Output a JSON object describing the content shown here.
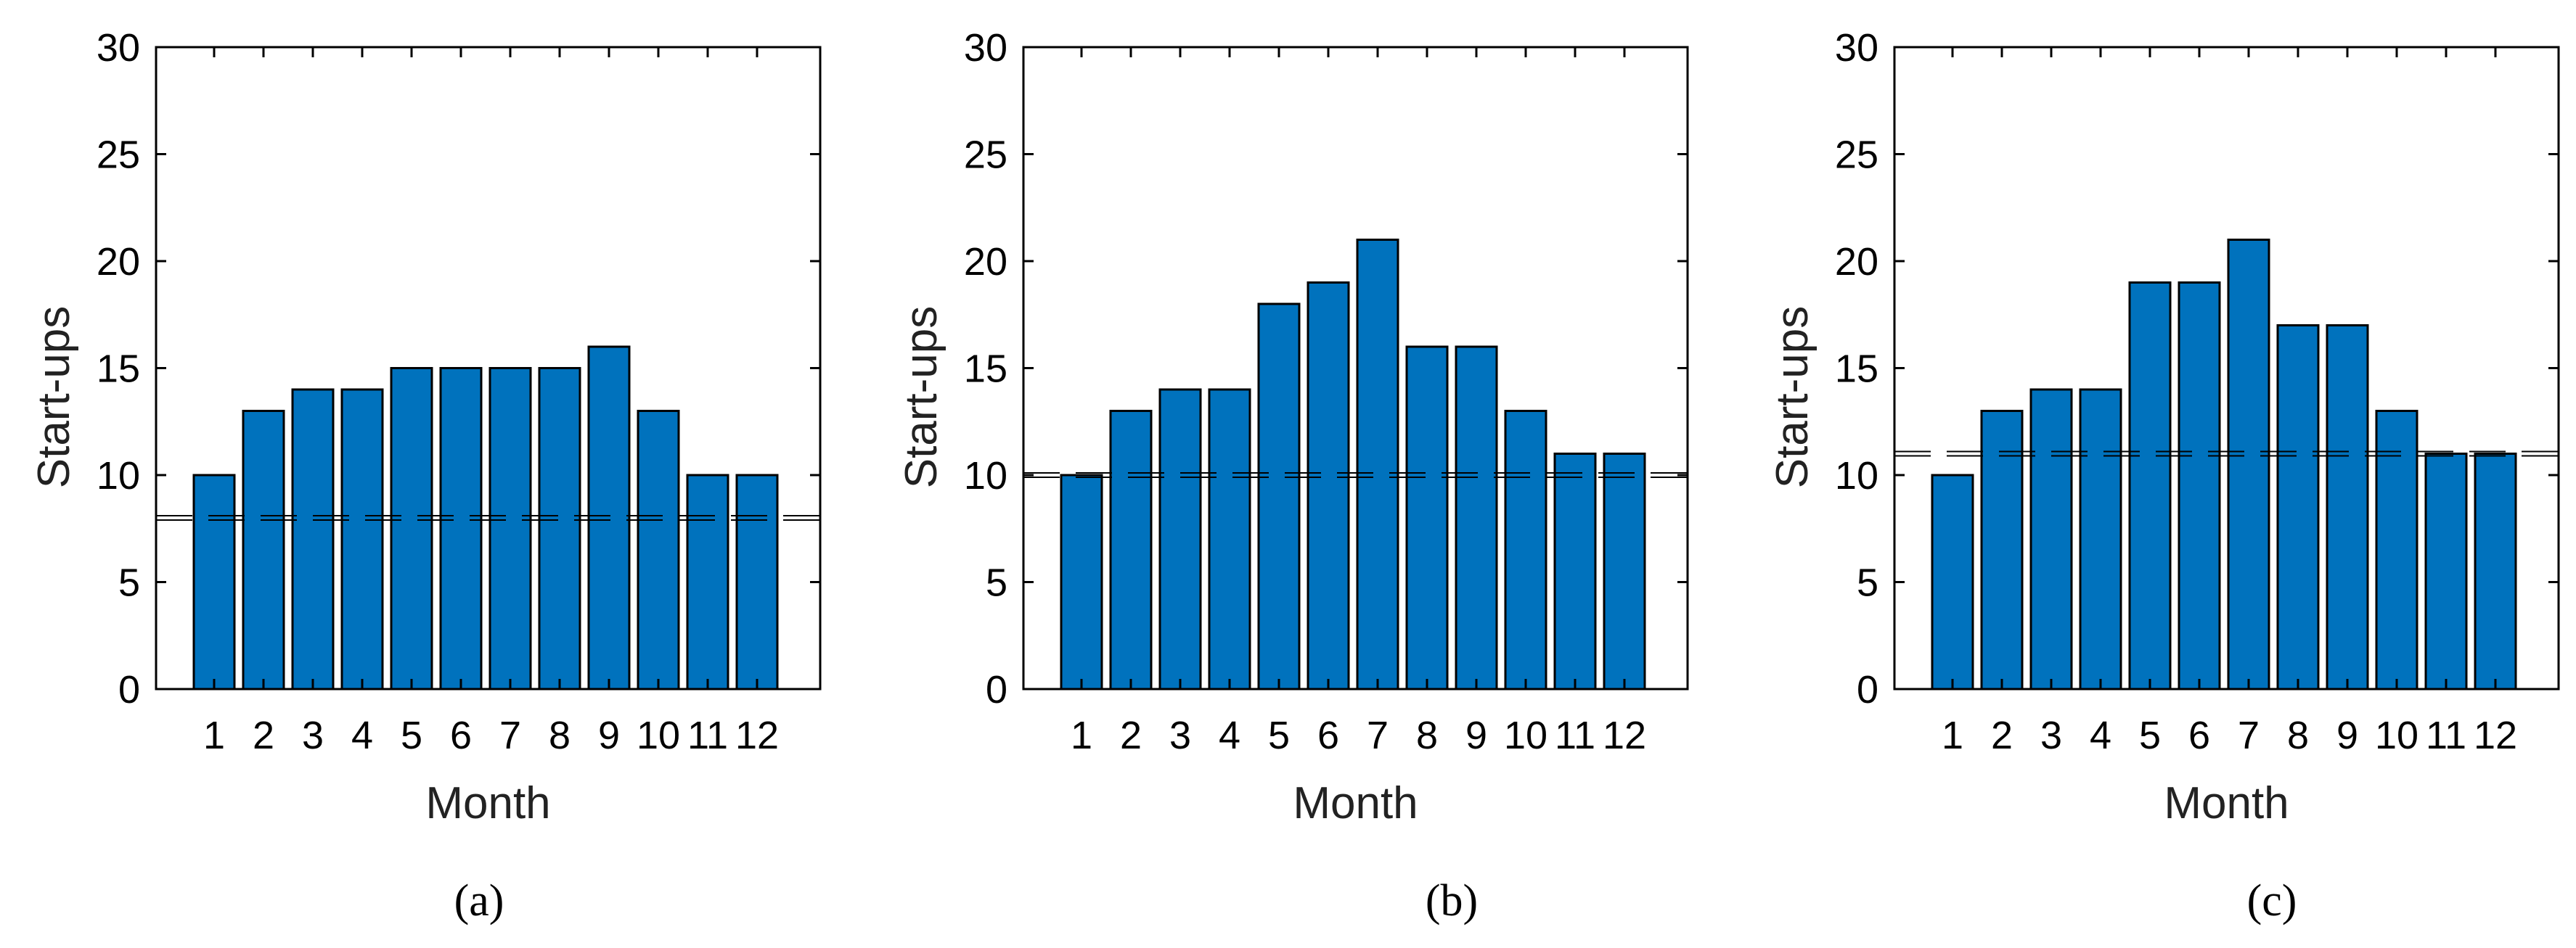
{
  "chart_data": [
    {
      "type": "bar",
      "panel_label": "(a)",
      "xlabel": "Month",
      "ylabel": "Start-ups",
      "ylim": [
        0,
        30
      ],
      "yticks": [
        0,
        5,
        10,
        15,
        20,
        25,
        30
      ],
      "categories": [
        "1",
        "2",
        "3",
        "4",
        "5",
        "6",
        "7",
        "8",
        "9",
        "10",
        "11",
        "12"
      ],
      "values": [
        10,
        13,
        14,
        14,
        15,
        15,
        15,
        15,
        16,
        13,
        10,
        10
      ],
      "reference_line": 8,
      "bar_color": "#0072bd",
      "grid": false
    },
    {
      "type": "bar",
      "panel_label": "(b)",
      "xlabel": "Month",
      "ylabel": "Start-ups",
      "ylim": [
        0,
        30
      ],
      "yticks": [
        0,
        5,
        10,
        15,
        20,
        25,
        30
      ],
      "categories": [
        "1",
        "2",
        "3",
        "4",
        "5",
        "6",
        "7",
        "8",
        "9",
        "10",
        "11",
        "12"
      ],
      "values": [
        10,
        13,
        14,
        14,
        18,
        19,
        21,
        16,
        16,
        13,
        11,
        11
      ],
      "reference_line": 10,
      "bar_color": "#0072bd",
      "grid": false
    },
    {
      "type": "bar",
      "panel_label": "(c)",
      "xlabel": "Month",
      "ylabel": "Start-ups",
      "ylim": [
        0,
        30
      ],
      "yticks": [
        0,
        5,
        10,
        15,
        20,
        25,
        30
      ],
      "categories": [
        "1",
        "2",
        "3",
        "4",
        "5",
        "6",
        "7",
        "8",
        "9",
        "10",
        "11",
        "12"
      ],
      "values": [
        10,
        13,
        14,
        14,
        19,
        19,
        21,
        17,
        17,
        13,
        11,
        11
      ],
      "reference_line": 11,
      "bar_color": "#0072bd",
      "grid": false
    }
  ]
}
